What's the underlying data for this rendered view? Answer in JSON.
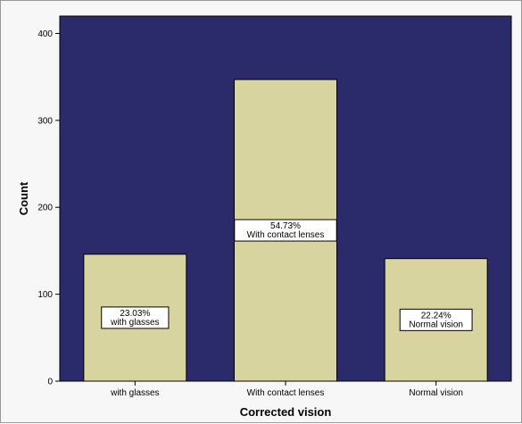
{
  "chart_data": {
    "type": "bar",
    "categories": [
      "with glasses",
      "With contact lenses",
      "Normal vision"
    ],
    "values": [
      146,
      347,
      141
    ],
    "data_labels": [
      [
        "23.03%",
        "with glasses"
      ],
      [
        "54.73%",
        "With contact lenses"
      ],
      [
        "22.24%",
        "Normal vision"
      ]
    ],
    "xlabel": "Corrected vision",
    "ylabel": "Count",
    "ylim": [
      0,
      420
    ],
    "yticks": [
      0,
      100,
      200,
      300,
      400
    ],
    "grid": false,
    "colors": {
      "plot_background": "#2b2b6b",
      "bar_fill": "#d8d4a0",
      "bar_stroke": "#000000",
      "label_box": "#ffffff"
    }
  }
}
